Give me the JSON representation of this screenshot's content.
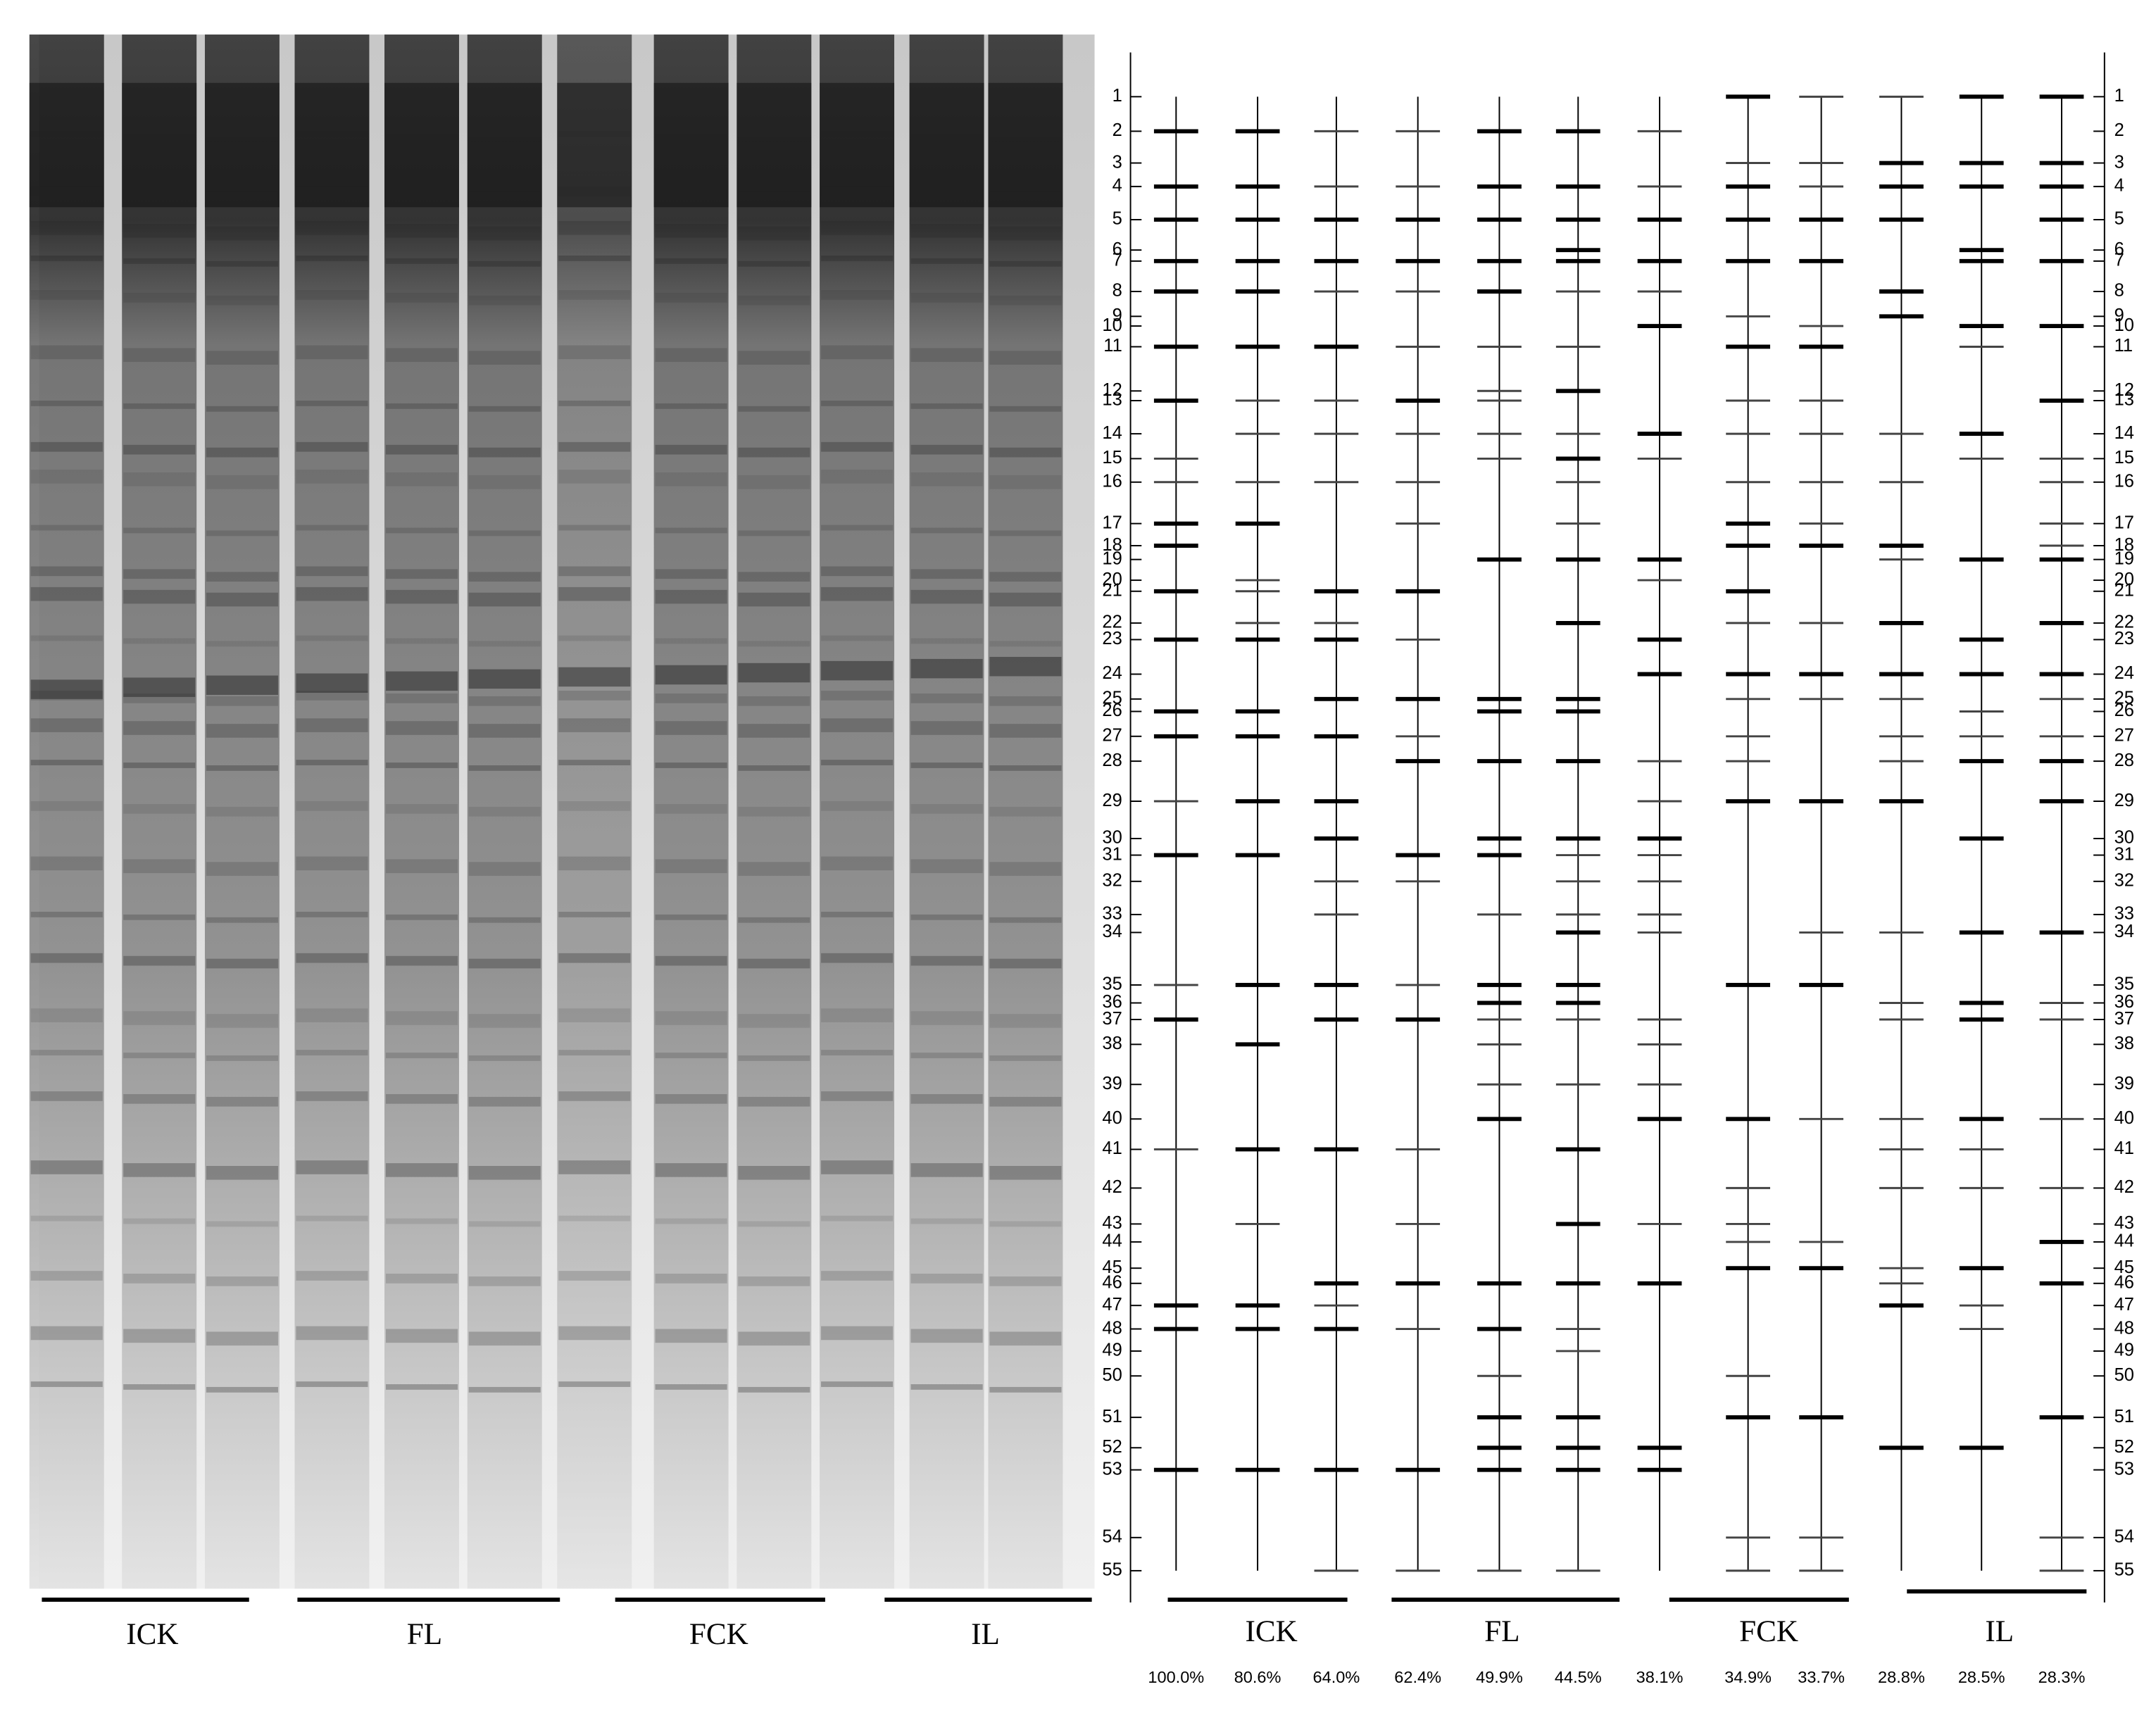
{
  "gel": {
    "group_labels": [
      "ICK",
      "FL",
      "FCK",
      "IL"
    ]
  },
  "diagram": {
    "group_labels": [
      "ICK",
      "FL",
      "FCK",
      "IL"
    ],
    "markers": [
      "1",
      "2",
      "3",
      "4",
      "5",
      "6",
      "7",
      "8",
      "9",
      "10",
      "11",
      "12",
      "13",
      "14",
      "15",
      "16",
      "17",
      "18",
      "19",
      "20",
      "21",
      "22",
      "23",
      "24",
      "25",
      "26",
      "27",
      "28",
      "29",
      "30",
      "31",
      "32",
      "33",
      "34",
      "35",
      "36",
      "37",
      "38",
      "39",
      "40",
      "41",
      "42",
      "43",
      "44",
      "45",
      "46",
      "47",
      "48",
      "49",
      "50",
      "51",
      "52",
      "53",
      "54",
      "55"
    ],
    "lanes": [
      {
        "similarity": "100.0%",
        "bands": [
          2,
          4,
          5,
          7,
          8,
          11,
          13,
          15,
          16,
          17,
          18,
          21,
          23,
          26,
          27,
          29,
          31,
          35,
          37,
          41,
          47,
          48,
          53
        ],
        "strong": [
          2,
          4,
          5,
          7,
          8,
          11,
          13,
          17,
          18,
          21,
          23,
          26,
          27,
          31,
          37,
          47,
          48,
          53
        ]
      },
      {
        "similarity": "80.6%",
        "bands": [
          2,
          4,
          5,
          7,
          8,
          11,
          13,
          14,
          16,
          17,
          20,
          21,
          22,
          23,
          26,
          27,
          29,
          31,
          35,
          38,
          41,
          43,
          47,
          48,
          53
        ],
        "strong": [
          2,
          4,
          5,
          7,
          8,
          11,
          17,
          23,
          26,
          27,
          29,
          31,
          35,
          38,
          41,
          47,
          48,
          53
        ]
      },
      {
        "similarity": "64.0%",
        "bands": [
          2,
          4,
          5,
          7,
          8,
          11,
          13,
          14,
          16,
          21,
          22,
          23,
          25,
          27,
          29,
          30,
          32,
          33,
          35,
          37,
          41,
          46,
          47,
          48,
          53,
          55
        ],
        "strong": [
          5,
          7,
          11,
          21,
          23,
          25,
          27,
          29,
          30,
          35,
          37,
          41,
          46,
          48,
          53
        ]
      },
      {
        "similarity": "62.4%",
        "bands": [
          2,
          4,
          5,
          7,
          8,
          11,
          13,
          14,
          16,
          17,
          21,
          23,
          25,
          27,
          28,
          31,
          32,
          35,
          37,
          41,
          43,
          46,
          48,
          53,
          55
        ],
        "strong": [
          5,
          7,
          13,
          21,
          25,
          28,
          31,
          37,
          46,
          53
        ]
      },
      {
        "similarity": "49.9%",
        "bands": [
          2,
          4,
          5,
          7,
          8,
          11,
          12,
          13,
          14,
          15,
          19,
          25,
          26,
          28,
          30,
          31,
          33,
          35,
          36,
          37,
          38,
          39,
          40,
          46,
          48,
          50,
          51,
          52,
          53,
          55
        ],
        "strong": [
          2,
          4,
          5,
          7,
          8,
          19,
          25,
          26,
          28,
          30,
          31,
          35,
          36,
          40,
          46,
          48,
          51,
          52,
          53
        ]
      },
      {
        "similarity": "44.5%",
        "bands": [
          2,
          4,
          5,
          6,
          7,
          8,
          11,
          12,
          14,
          15,
          16,
          17,
          19,
          22,
          25,
          26,
          28,
          30,
          31,
          32,
          33,
          34,
          35,
          36,
          37,
          39,
          41,
          43,
          46,
          48,
          49,
          51,
          52,
          53,
          55
        ],
        "strong": [
          2,
          4,
          5,
          6,
          7,
          12,
          15,
          19,
          22,
          25,
          26,
          28,
          30,
          34,
          35,
          36,
          41,
          43,
          46,
          51,
          52,
          53
        ]
      },
      {
        "similarity": "38.1%",
        "bands": [
          2,
          4,
          5,
          7,
          8,
          10,
          14,
          15,
          19,
          20,
          23,
          24,
          28,
          29,
          30,
          31,
          32,
          33,
          34,
          37,
          38,
          39,
          40,
          43,
          46,
          52,
          53
        ],
        "strong": [
          5,
          7,
          10,
          14,
          19,
          23,
          24,
          30,
          40,
          46,
          52,
          53
        ]
      },
      {
        "similarity": "34.9%",
        "bands": [
          1,
          3,
          4,
          5,
          7,
          9,
          11,
          13,
          14,
          16,
          17,
          18,
          21,
          22,
          24,
          25,
          27,
          28,
          29,
          35,
          40,
          42,
          43,
          44,
          45,
          50,
          51,
          54,
          55
        ],
        "strong": [
          1,
          4,
          5,
          7,
          11,
          17,
          18,
          21,
          24,
          29,
          35,
          40,
          45,
          51
        ]
      },
      {
        "similarity": "33.7%",
        "bands": [
          1,
          3,
          4,
          5,
          7,
          10,
          11,
          13,
          14,
          16,
          17,
          18,
          22,
          24,
          25,
          29,
          34,
          35,
          40,
          44,
          45,
          51,
          54,
          55
        ],
        "strong": [
          5,
          7,
          11,
          18,
          24,
          29,
          35,
          45,
          51
        ]
      },
      {
        "similarity": "28.8%",
        "bands": [
          1,
          3,
          4,
          5,
          8,
          9,
          14,
          16,
          18,
          19,
          22,
          24,
          25,
          27,
          28,
          29,
          34,
          36,
          37,
          40,
          41,
          42,
          45,
          46,
          47,
          52
        ],
        "strong": [
          3,
          4,
          5,
          8,
          9,
          18,
          22,
          24,
          29,
          47,
          52
        ]
      },
      {
        "similarity": "28.5%",
        "bands": [
          1,
          3,
          4,
          6,
          7,
          10,
          11,
          14,
          15,
          19,
          23,
          24,
          26,
          27,
          28,
          30,
          34,
          36,
          37,
          40,
          41,
          42,
          45,
          47,
          48,
          52
        ],
        "strong": [
          1,
          3,
          4,
          6,
          7,
          10,
          14,
          19,
          23,
          24,
          28,
          30,
          34,
          36,
          37,
          40,
          45,
          52
        ]
      },
      {
        "similarity": "28.3%",
        "bands": [
          1,
          3,
          4,
          5,
          7,
          10,
          13,
          15,
          16,
          17,
          18,
          19,
          22,
          24,
          25,
          27,
          28,
          29,
          34,
          36,
          37,
          40,
          42,
          44,
          46,
          51,
          54,
          55
        ],
        "strong": [
          1,
          3,
          4,
          5,
          7,
          10,
          13,
          19,
          22,
          24,
          28,
          29,
          34,
          44,
          46,
          51
        ]
      }
    ]
  }
}
